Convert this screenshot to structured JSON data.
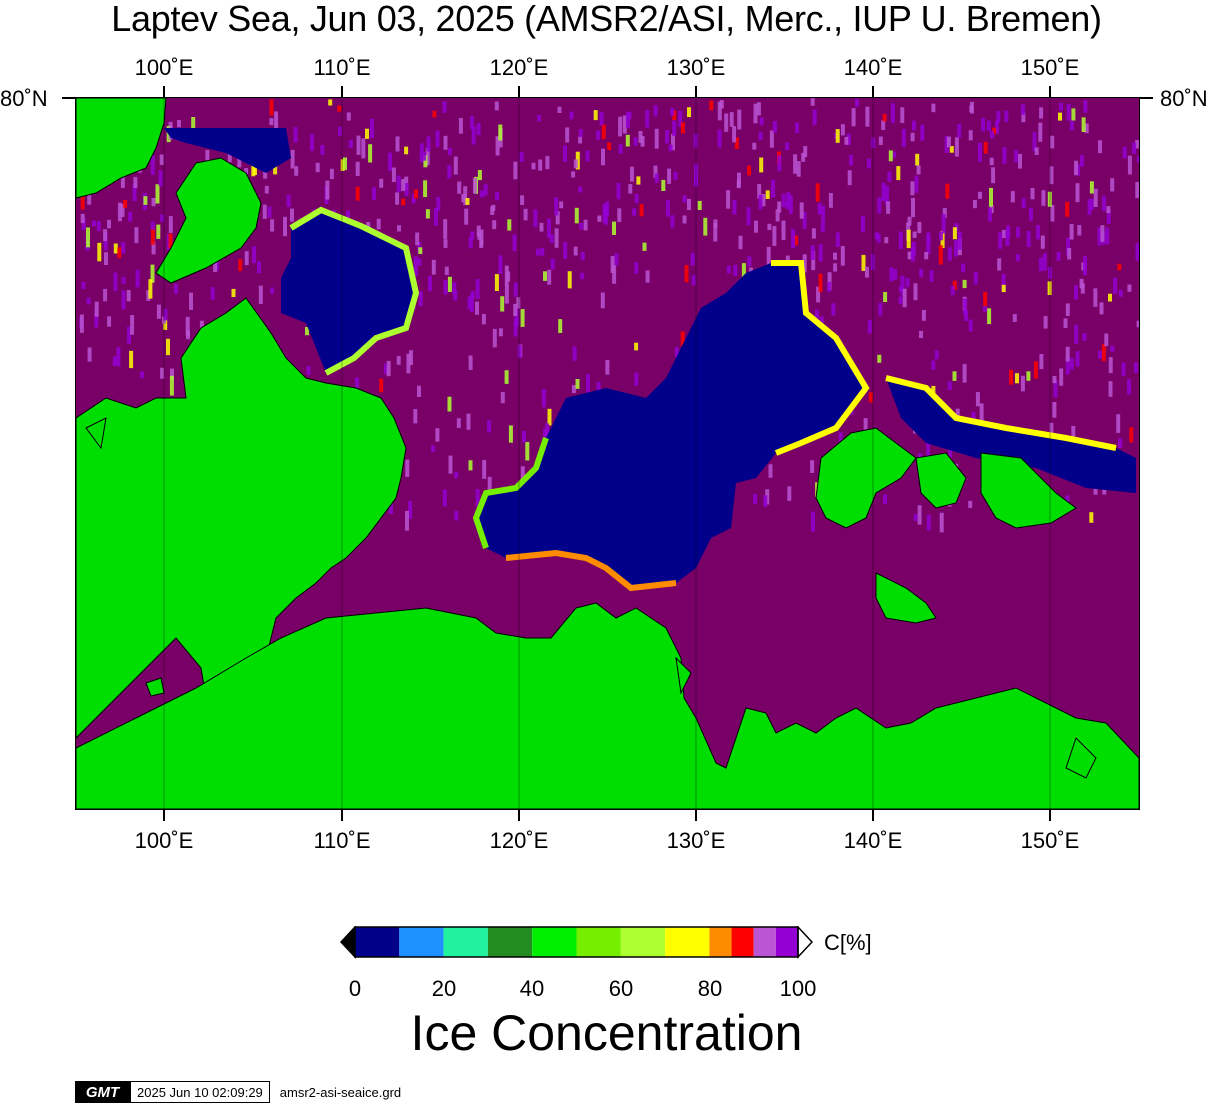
{
  "title": "Laptev Sea, Jun 03, 2025 (AMSR2/ASI, Merc., IUP U. Bremen)",
  "lon_labels": [
    "100˚E",
    "110˚E",
    "120˚E",
    "130˚E",
    "140˚E",
    "150˚E"
  ],
  "lat_label": "80˚N",
  "colorbar": {
    "unit_label": "C[%]",
    "tick_labels": [
      "0",
      "20",
      "40",
      "60",
      "80",
      "100"
    ],
    "colors": [
      "#00008b",
      "#1e90ff",
      "#20f2a0",
      "#228b22",
      "#00ee00",
      "#76ee00",
      "#adff2f",
      "#ffff00",
      "#ff8c00",
      "#ff0000",
      "#ba55d3",
      "#9400d3"
    ],
    "under_color": "#000000",
    "over_color": "#ffffff"
  },
  "legend_title": "Ice Concentration",
  "colors": {
    "land": "#00dd00",
    "sea_ice_full": "#780066",
    "open_water": "#00008b"
  },
  "footer": {
    "logo": "GMT",
    "timestamp": "2025 Jun 10 02:09:29",
    "filename": "amsr2-asi-seaice.grd"
  }
}
